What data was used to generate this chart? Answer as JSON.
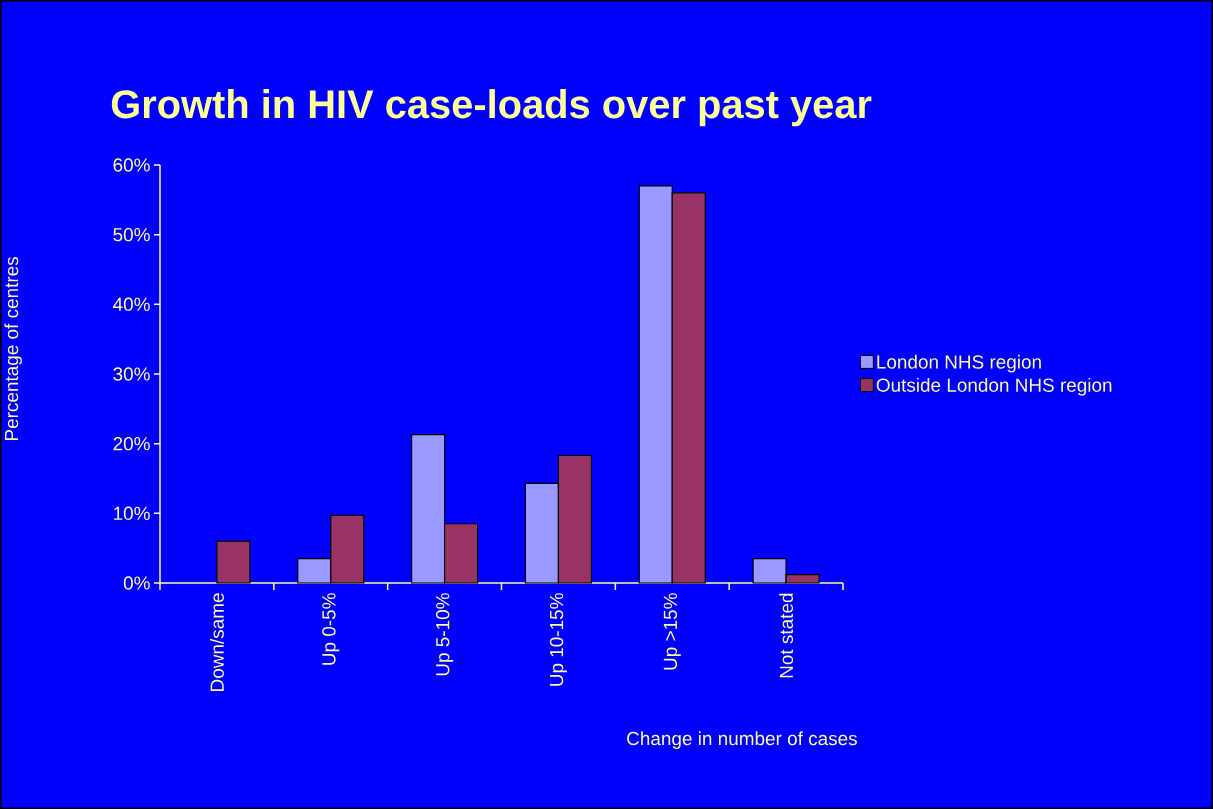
{
  "chart_data": {
    "type": "bar",
    "title": "Growth in HIV case-loads over past year",
    "xlabel": "Change in number of cases",
    "ylabel": "Percentage of centres",
    "categories": [
      "Down/same",
      "Up 0-5%",
      "Up 5-10%",
      "Up 10-15%",
      "Up >15%",
      "Not stated"
    ],
    "series": [
      {
        "name": "London NHS region",
        "color": "#9999ff",
        "values": [
          null,
          3.5,
          21.3,
          14.3,
          57.0,
          3.5
        ]
      },
      {
        "name": "Outside London NHS region",
        "color": "#993366",
        "values": [
          6.0,
          9.7,
          8.5,
          18.3,
          56.0,
          1.2
        ]
      }
    ],
    "ylim": [
      0,
      60
    ],
    "yticks": [
      {
        "value": 0,
        "label": "0%"
      },
      {
        "value": 10,
        "label": "10%"
      },
      {
        "value": 20,
        "label": "20%"
      },
      {
        "value": 30,
        "label": "30%"
      },
      {
        "value": 40,
        "label": "40%"
      },
      {
        "value": 50,
        "label": "50%"
      },
      {
        "value": 60,
        "label": "60%"
      }
    ],
    "grid": false,
    "legend": "right"
  }
}
